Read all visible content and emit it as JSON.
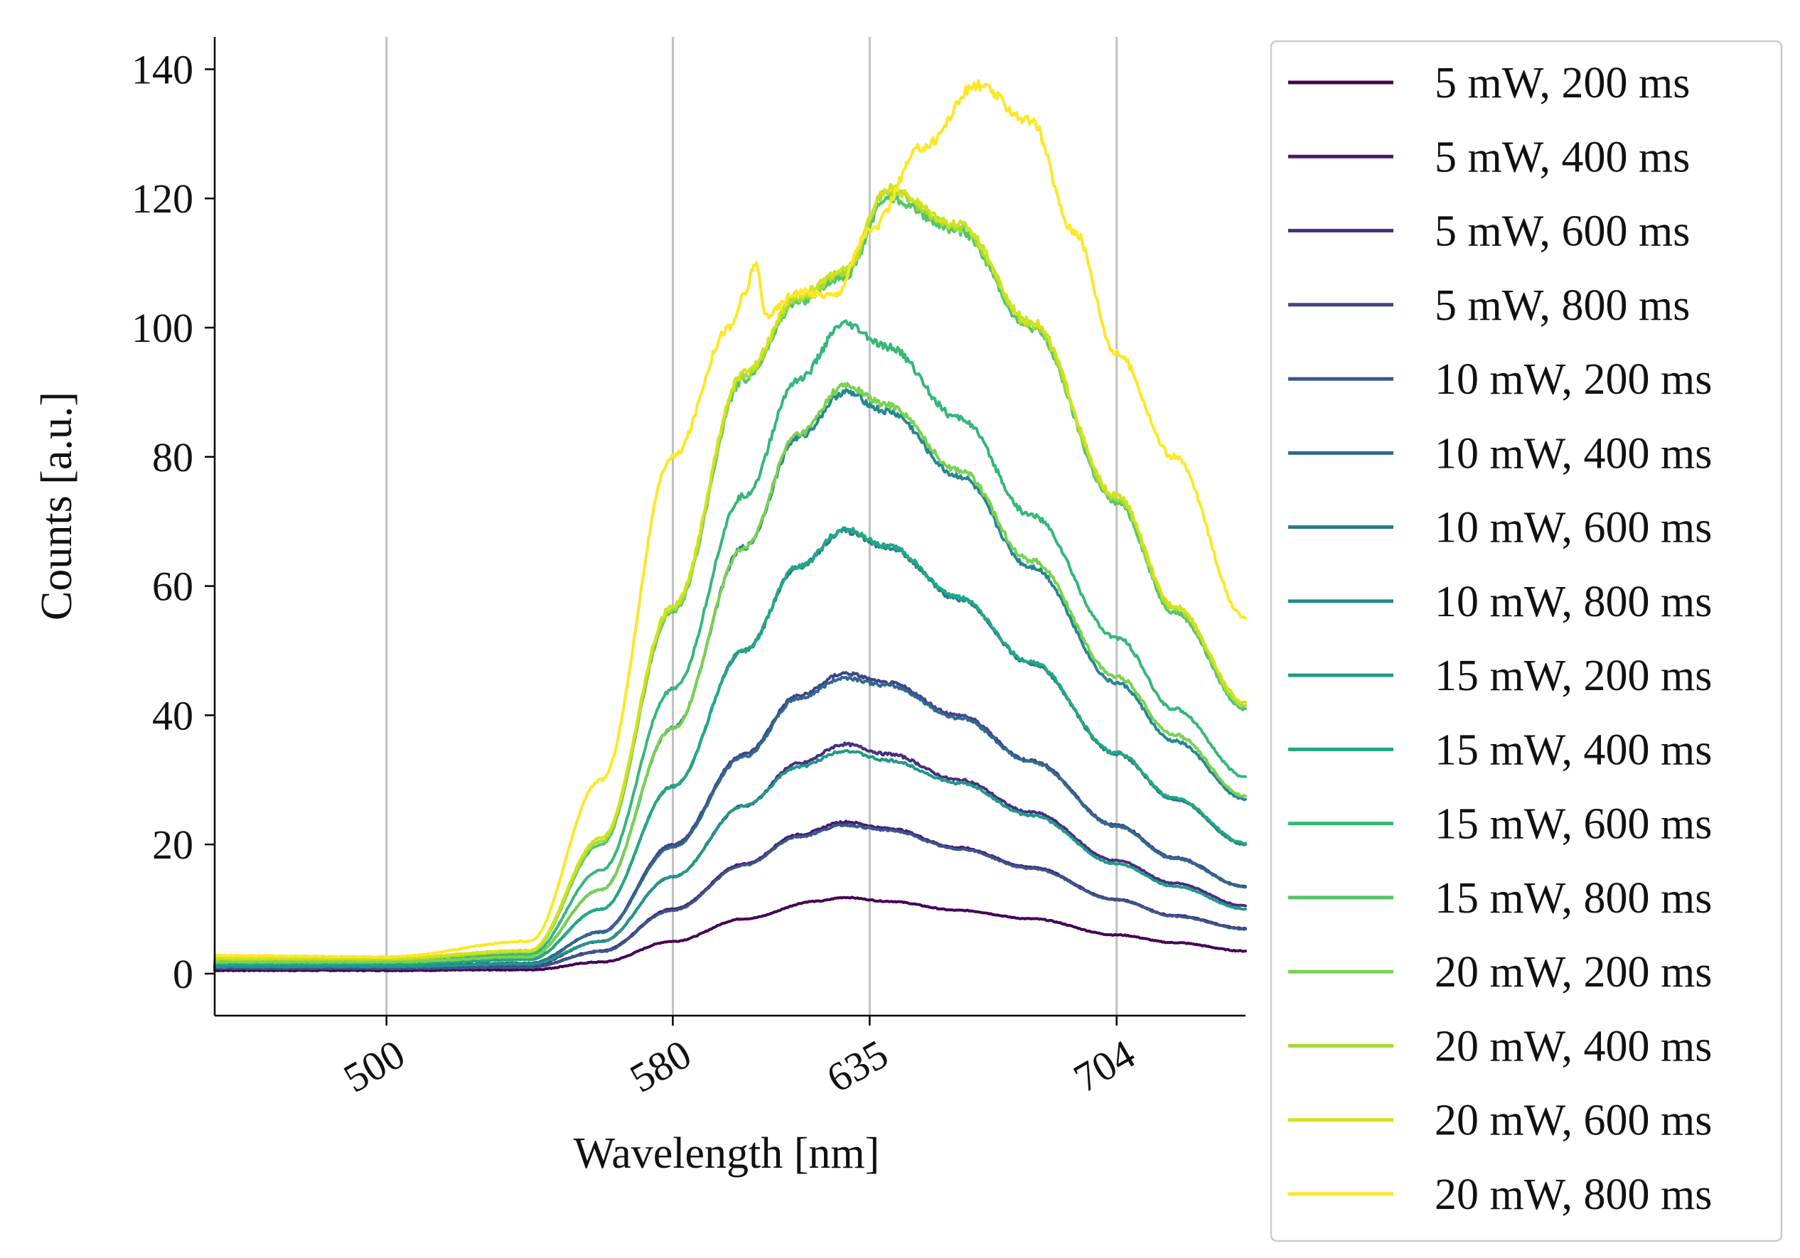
{
  "chart_data": {
    "type": "line",
    "xlabel": "Wavelength [nm]",
    "ylabel": "Counts [a.u.]",
    "xlim": [
      452,
      740
    ],
    "ylim": [
      -6.5,
      145
    ],
    "grid": "vertical lines at x ticks",
    "x_ticks": [
      500,
      580,
      635,
      704
    ],
    "x_tick_labels": [
      "500",
      "580",
      "635",
      "704"
    ],
    "y_ticks": [
      0,
      20,
      40,
      60,
      80,
      100,
      120,
      140
    ],
    "y_tick_labels": [
      "0",
      "20",
      "40",
      "60",
      "80",
      "100",
      "120",
      "140"
    ],
    "legend_position": "outside right",
    "series": [
      {
        "name": "5 mW, 200 ms",
        "color": "#440154",
        "points": [
          [
            452,
            0.5
          ],
          [
            500,
            0.5
          ],
          [
            540,
            0.6
          ],
          [
            560,
            1.8
          ],
          [
            580,
            5
          ],
          [
            600,
            8.5
          ],
          [
            620,
            11.2
          ],
          [
            628,
            11.8
          ],
          [
            640,
            11.2
          ],
          [
            660,
            9.8
          ],
          [
            680,
            8.5
          ],
          [
            704,
            6
          ],
          [
            720,
            4.8
          ],
          [
            740,
            3.5
          ]
        ]
      },
      {
        "name": "5 mW, 400 ms",
        "color": "#481a6c",
        "points": [
          [
            452,
            0.8
          ],
          [
            500,
            0.8
          ],
          [
            540,
            1
          ],
          [
            560,
            3.5
          ],
          [
            580,
            10
          ],
          [
            600,
            17
          ],
          [
            615,
            21.5
          ],
          [
            628,
            23.5
          ],
          [
            640,
            22.5
          ],
          [
            660,
            19.5
          ],
          [
            680,
            16.5
          ],
          [
            704,
            11.5
          ],
          [
            720,
            9
          ],
          [
            740,
            7
          ]
        ]
      },
      {
        "name": "5 mW, 600 ms",
        "color": "#472f7d",
        "points": [
          [
            452,
            1
          ],
          [
            500,
            1
          ],
          [
            540,
            1.3
          ],
          [
            560,
            5
          ],
          [
            580,
            15
          ],
          [
            600,
            26
          ],
          [
            615,
            32.5
          ],
          [
            628,
            35.5
          ],
          [
            640,
            34
          ],
          [
            660,
            30
          ],
          [
            680,
            25
          ],
          [
            704,
            17.5
          ],
          [
            720,
            14
          ],
          [
            740,
            10.5
          ]
        ]
      },
      {
        "name": "5 mW, 800 ms",
        "color": "#414487",
        "points": [
          [
            452,
            1.2
          ],
          [
            500,
            1.2
          ],
          [
            540,
            1.6
          ],
          [
            560,
            6.5
          ],
          [
            580,
            20
          ],
          [
            600,
            34
          ],
          [
            615,
            43
          ],
          [
            628,
            46.5
          ],
          [
            640,
            45
          ],
          [
            660,
            40
          ],
          [
            680,
            33
          ],
          [
            704,
            23
          ],
          [
            720,
            18
          ],
          [
            740,
            13.5
          ]
        ]
      },
      {
        "name": "10 mW, 200 ms",
        "color": "#39568c",
        "points": [
          [
            452,
            0.8
          ],
          [
            500,
            0.8
          ],
          [
            540,
            1
          ],
          [
            560,
            3.4
          ],
          [
            580,
            9.8
          ],
          [
            600,
            16.8
          ],
          [
            615,
            21.2
          ],
          [
            628,
            23
          ],
          [
            640,
            22.2
          ],
          [
            660,
            19.3
          ],
          [
            680,
            16.3
          ],
          [
            704,
            11.4
          ],
          [
            720,
            8.9
          ],
          [
            740,
            6.9
          ]
        ]
      },
      {
        "name": "10 mW, 400 ms",
        "color": "#31688e",
        "points": [
          [
            452,
            1.2
          ],
          [
            500,
            1.2
          ],
          [
            540,
            1.6
          ],
          [
            560,
            6.4
          ],
          [
            580,
            19.6
          ],
          [
            600,
            33.6
          ],
          [
            615,
            42.6
          ],
          [
            628,
            45.8
          ],
          [
            640,
            44.6
          ],
          [
            660,
            39.6
          ],
          [
            680,
            32.8
          ],
          [
            704,
            22.8
          ],
          [
            720,
            17.8
          ],
          [
            740,
            13.4
          ]
        ]
      },
      {
        "name": "10 mW, 600 ms",
        "color": "#2a788e",
        "points": [
          [
            452,
            1.5
          ],
          [
            500,
            1.5
          ],
          [
            540,
            2.2
          ],
          [
            560,
            10
          ],
          [
            580,
            29
          ],
          [
            600,
            50
          ],
          [
            615,
            63
          ],
          [
            628,
            68.5
          ],
          [
            640,
            66
          ],
          [
            660,
            58
          ],
          [
            680,
            48
          ],
          [
            704,
            34
          ],
          [
            720,
            27
          ],
          [
            740,
            20
          ]
        ]
      },
      {
        "name": "10 mW, 800 ms",
        "color": "#23888e",
        "points": [
          [
            452,
            1.8
          ],
          [
            500,
            1.8
          ],
          [
            540,
            2.6
          ],
          [
            560,
            13
          ],
          [
            580,
            38
          ],
          [
            600,
            66
          ],
          [
            615,
            83
          ],
          [
            628,
            90
          ],
          [
            640,
            87
          ],
          [
            660,
            77
          ],
          [
            680,
            63
          ],
          [
            704,
            45
          ],
          [
            720,
            36
          ],
          [
            740,
            27
          ]
        ]
      },
      {
        "name": "15 mW, 200 ms",
        "color": "#1f988b",
        "points": [
          [
            452,
            1.1
          ],
          [
            500,
            1.1
          ],
          [
            540,
            1.5
          ],
          [
            560,
            5
          ],
          [
            580,
            15
          ],
          [
            600,
            26
          ],
          [
            615,
            32
          ],
          [
            628,
            34.5
          ],
          [
            640,
            33
          ],
          [
            660,
            29.5
          ],
          [
            680,
            24.5
          ],
          [
            704,
            17
          ],
          [
            720,
            13.5
          ],
          [
            740,
            10
          ]
        ]
      },
      {
        "name": "15 mW, 400 ms",
        "color": "#22a884",
        "points": [
          [
            452,
            1.5
          ],
          [
            500,
            1.5
          ],
          [
            540,
            2.2
          ],
          [
            560,
            10
          ],
          [
            580,
            29
          ],
          [
            600,
            50
          ],
          [
            615,
            63
          ],
          [
            628,
            68.8
          ],
          [
            640,
            66.2
          ],
          [
            660,
            58.2
          ],
          [
            680,
            48.2
          ],
          [
            704,
            34.2
          ],
          [
            720,
            27.2
          ],
          [
            740,
            20.2
          ]
        ]
      },
      {
        "name": "15 mW, 600 ms",
        "color": "#35b779",
        "points": [
          [
            452,
            2
          ],
          [
            500,
            2
          ],
          [
            540,
            3
          ],
          [
            560,
            16
          ],
          [
            580,
            44
          ],
          [
            600,
            74
          ],
          [
            615,
            92
          ],
          [
            628,
            100.5
          ],
          [
            640,
            97
          ],
          [
            660,
            86
          ],
          [
            680,
            71
          ],
          [
            704,
            52
          ],
          [
            720,
            41
          ],
          [
            740,
            30.5
          ]
        ]
      },
      {
        "name": "15 mW, 800 ms",
        "color": "#54c568",
        "points": [
          [
            452,
            2.2
          ],
          [
            500,
            2.2
          ],
          [
            540,
            3.4
          ],
          [
            560,
            20
          ],
          [
            580,
            56
          ],
          [
            600,
            92
          ],
          [
            615,
            104
          ],
          [
            628,
            108
          ],
          [
            640,
            120
          ],
          [
            660,
            115
          ],
          [
            680,
            100
          ],
          [
            704,
            73
          ],
          [
            720,
            56
          ],
          [
            740,
            41
          ]
        ]
      },
      {
        "name": "20 mW, 200 ms",
        "color": "#7ad151",
        "points": [
          [
            452,
            1.8
          ],
          [
            500,
            1.8
          ],
          [
            540,
            2.6
          ],
          [
            560,
            13
          ],
          [
            580,
            38
          ],
          [
            600,
            66
          ],
          [
            615,
            83.5
          ],
          [
            628,
            91
          ],
          [
            640,
            88
          ],
          [
            660,
            78
          ],
          [
            680,
            64
          ],
          [
            704,
            46
          ],
          [
            720,
            37
          ],
          [
            740,
            27.5
          ]
        ]
      },
      {
        "name": "20 mW, 400 ms",
        "color": "#a5db36",
        "points": [
          [
            452,
            2.2
          ],
          [
            500,
            2.2
          ],
          [
            540,
            3.4
          ],
          [
            560,
            20.5
          ],
          [
            580,
            56.5
          ],
          [
            600,
            92.5
          ],
          [
            615,
            104.5
          ],
          [
            628,
            108.5
          ],
          [
            640,
            121
          ],
          [
            660,
            115.5
          ],
          [
            680,
            100.5
          ],
          [
            704,
            73.5
          ],
          [
            720,
            56.5
          ],
          [
            740,
            41.5
          ]
        ]
      },
      {
        "name": "20 mW, 600 ms",
        "color": "#d2e21b",
        "points": [
          [
            452,
            2.4
          ],
          [
            500,
            2.4
          ],
          [
            540,
            3.6
          ],
          [
            560,
            21
          ],
          [
            580,
            57
          ],
          [
            600,
            93
          ],
          [
            615,
            105
          ],
          [
            628,
            109
          ],
          [
            640,
            121.5
          ],
          [
            660,
            116
          ],
          [
            680,
            101
          ],
          [
            704,
            74
          ],
          [
            720,
            57
          ],
          [
            740,
            42
          ]
        ]
      },
      {
        "name": "20 mW, 800 ms",
        "color": "#fde725",
        "points": [
          [
            452,
            2.8
          ],
          [
            500,
            2.6
          ],
          [
            540,
            5
          ],
          [
            560,
            30
          ],
          [
            580,
            80
          ],
          [
            596,
            100
          ],
          [
            600,
            105
          ],
          [
            603,
            110
          ],
          [
            606,
            102
          ],
          [
            615,
            105.5
          ],
          [
            625,
            105
          ],
          [
            635,
            115
          ],
          [
            650,
            128
          ],
          [
            665,
            137.5
          ],
          [
            680,
            132
          ],
          [
            692,
            115
          ],
          [
            704,
            96
          ],
          [
            720,
            80
          ],
          [
            740,
            55
          ]
        ]
      }
    ]
  }
}
